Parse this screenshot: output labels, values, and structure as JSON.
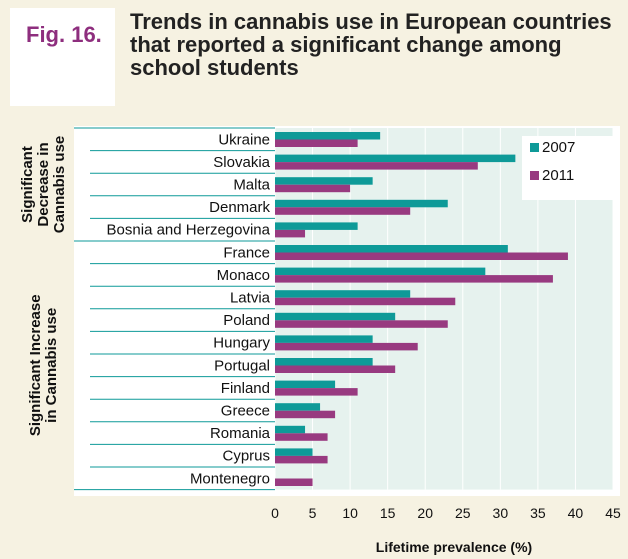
{
  "figure": {
    "label": "Fig. 16.",
    "title": "Trends in cannabis use in European countries that reported a significant change among school students"
  },
  "colors": {
    "background": "#f6f2e2",
    "plot_band": "#e6f2ee",
    "teal": "#0e9a98",
    "purple": "#983a80",
    "title_accent": "#8e2e7e"
  },
  "chart_data": {
    "type": "bar",
    "orientation": "horizontal",
    "title": "Trends in cannabis use in European countries that reported a significant change among school students",
    "xlabel": "Lifetime prevalence (%)",
    "ylabel": "",
    "xlim": [
      0,
      45
    ],
    "xticks": [
      0,
      5,
      10,
      15,
      20,
      25,
      30,
      35,
      40,
      45
    ],
    "legend_position": "top-right",
    "categories": [
      "Ukraine",
      "Slovakia",
      "Malta",
      "Denmark",
      "Bosnia and Herzegovina",
      "France",
      "Monaco",
      "Latvia",
      "Poland",
      "Hungary",
      "Portugal",
      "Finland",
      "Greece",
      "Romania",
      "Cyprus",
      "Montenegro"
    ],
    "series": [
      {
        "name": "2007",
        "color": "#0e9a98",
        "values": [
          14,
          32,
          13,
          23,
          11,
          31,
          28,
          18,
          16,
          13,
          13,
          8,
          6,
          4,
          5,
          null
        ]
      },
      {
        "name": "2011",
        "color": "#983a80",
        "values": [
          11,
          27,
          10,
          18,
          4,
          39,
          37,
          24,
          23,
          19,
          16,
          11,
          8,
          7,
          7,
          5
        ]
      }
    ],
    "groups": [
      {
        "label_lines": [
          "Significant",
          "Decrease in",
          "Cannabis use"
        ],
        "start": 0,
        "end": 4
      },
      {
        "label_lines": [
          "Significant Increase",
          "in Cannabis use"
        ],
        "start": 5,
        "end": 15
      }
    ]
  }
}
